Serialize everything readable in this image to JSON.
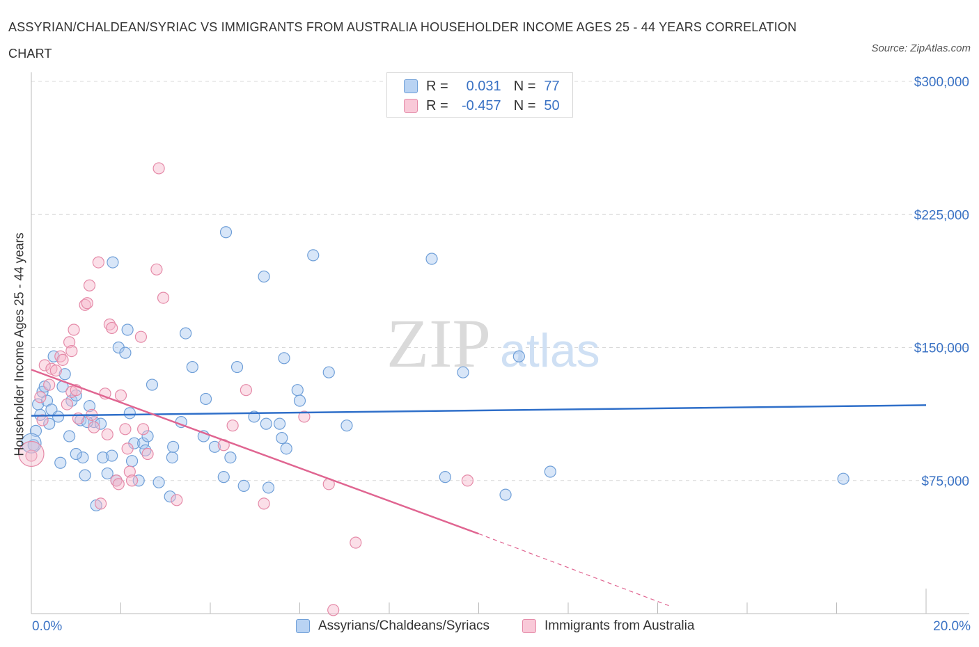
{
  "title": "ASSYRIAN/CHALDEAN/SYRIAC VS IMMIGRANTS FROM AUSTRALIA HOUSEHOLDER INCOME AGES 25 - 44 YEARS CORRELATION CHART",
  "source": "Source: ZipAtlas.com",
  "watermark": {
    "zip": "ZIP",
    "atlas": "atlas"
  },
  "legend": {
    "rows": [
      {
        "r_label": "R =",
        "r_value": "0.031",
        "n_label": "N =",
        "n_value": "77"
      },
      {
        "r_label": "R =",
        "r_value": "-0.457",
        "n_label": "N =",
        "n_value": "50"
      }
    ]
  },
  "bottom_legend": [
    {
      "label": "Assyrians/Chaldeans/Syriacs"
    },
    {
      "label": "Immigrants from Australia"
    }
  ],
  "colors": {
    "blue_fill": "#a9c8f0",
    "blue_stroke": "#6f9fd8",
    "blue_line": "#2f6fc9",
    "pink_fill": "#f6b8cb",
    "pink_stroke": "#e58aa8",
    "pink_line": "#e06591",
    "tick_text": "#3a72c4",
    "grid": "#d9d9d9"
  },
  "chart_data": {
    "type": "scatter",
    "title": "ASSYRIAN/CHALDEAN/SYRIAC VS IMMIGRANTS FROM AUSTRALIA HOUSEHOLDER INCOME AGES 25 - 44 YEARS CORRELATION CHART",
    "xlabel": "",
    "ylabel": "Householder Income Ages 25 - 44 years",
    "xlim": [
      0,
      20
    ],
    "ylim": [
      0,
      300000
    ],
    "x_tick_labels": [
      "0.0%",
      "20.0%"
    ],
    "y_ticks": [
      75000,
      150000,
      225000,
      300000
    ],
    "y_tick_labels": [
      "$75,000",
      "$150,000",
      "$225,000",
      "$300,000"
    ],
    "grid": true,
    "series": [
      {
        "name": "Assyrians/Chaldeans/Syriacs",
        "color": "#a9c8f0",
        "trend": {
          "x": [
            0,
            20
          ],
          "y": [
            111500,
            117500
          ]
        },
        "points": [
          [
            0.05,
            95000
          ],
          [
            0.1,
            103000
          ],
          [
            0.15,
            118000
          ],
          [
            0.2,
            112000
          ],
          [
            0.25,
            125000
          ],
          [
            0.3,
            128000
          ],
          [
            0.35,
            120000
          ],
          [
            0.4,
            107000
          ],
          [
            0.45,
            115000
          ],
          [
            0.5,
            145000
          ],
          [
            0.6,
            111000
          ],
          [
            0.65,
            85000
          ],
          [
            0.7,
            128000
          ],
          [
            0.75,
            135000
          ],
          [
            0.85,
            100000
          ],
          [
            0.9,
            120000
          ],
          [
            1.0,
            123000
          ],
          [
            1.1,
            109000
          ],
          [
            1.15,
            88000
          ],
          [
            1.2,
            78000
          ],
          [
            1.3,
            117000
          ],
          [
            1.4,
            108000
          ],
          [
            1.45,
            61000
          ],
          [
            1.55,
            107000
          ],
          [
            1.6,
            88000
          ],
          [
            1.7,
            79000
          ],
          [
            1.8,
            89000
          ],
          [
            1.82,
            198000
          ],
          [
            1.9,
            75000
          ],
          [
            1.95,
            150000
          ],
          [
            2.1,
            147000
          ],
          [
            2.15,
            160000
          ],
          [
            2.2,
            113000
          ],
          [
            2.25,
            86000
          ],
          [
            2.3,
            96000
          ],
          [
            2.4,
            75000
          ],
          [
            2.5,
            96000
          ],
          [
            2.55,
            92000
          ],
          [
            2.7,
            129000
          ],
          [
            2.85,
            74000
          ],
          [
            3.15,
            88000
          ],
          [
            3.17,
            94000
          ],
          [
            3.35,
            108000
          ],
          [
            3.45,
            158000
          ],
          [
            3.6,
            139000
          ],
          [
            3.85,
            100000
          ],
          [
            3.9,
            121000
          ],
          [
            4.1,
            94000
          ],
          [
            4.3,
            77000
          ],
          [
            4.35,
            215000
          ],
          [
            4.45,
            88000
          ],
          [
            4.6,
            139000
          ],
          [
            4.75,
            72000
          ],
          [
            4.98,
            111000
          ],
          [
            5.2,
            190000
          ],
          [
            5.25,
            107000
          ],
          [
            5.3,
            71000
          ],
          [
            5.55,
            107000
          ],
          [
            5.6,
            99000
          ],
          [
            5.65,
            144000
          ],
          [
            5.7,
            93000
          ],
          [
            5.95,
            126000
          ],
          [
            6.0,
            120000
          ],
          [
            6.3,
            202000
          ],
          [
            6.65,
            136000
          ],
          [
            7.05,
            106000
          ],
          [
            8.95,
            200000
          ],
          [
            9.25,
            77000
          ],
          [
            9.65,
            136000
          ],
          [
            10.6,
            67000
          ],
          [
            10.9,
            145000
          ],
          [
            11.6,
            80000
          ],
          [
            18.15,
            76000
          ],
          [
            1.0,
            90000
          ],
          [
            1.25,
            108000
          ],
          [
            2.6,
            100000
          ],
          [
            3.1,
            66000
          ]
        ]
      },
      {
        "name": "Immigrants from Australia",
        "color": "#f6b8cb",
        "trend": {
          "x": [
            0,
            10
          ],
          "y": [
            137500,
            45000
          ],
          "dashed_to": {
            "x": 14.3,
            "y": 4000
          }
        },
        "points": [
          [
            0.0,
            89000
          ],
          [
            0.2,
            122000
          ],
          [
            0.25,
            109000
          ],
          [
            0.3,
            140000
          ],
          [
            0.4,
            129000
          ],
          [
            0.45,
            138000
          ],
          [
            0.55,
            137000
          ],
          [
            0.65,
            145000
          ],
          [
            0.7,
            143000
          ],
          [
            0.8,
            118000
          ],
          [
            0.85,
            153000
          ],
          [
            0.9,
            125000
          ],
          [
            0.9,
            148000
          ],
          [
            0.95,
            160000
          ],
          [
            1.0,
            126000
          ],
          [
            1.05,
            110000
          ],
          [
            1.2,
            174000
          ],
          [
            1.25,
            175000
          ],
          [
            1.3,
            185000
          ],
          [
            1.35,
            112000
          ],
          [
            1.4,
            105000
          ],
          [
            1.5,
            198000
          ],
          [
            1.55,
            62000
          ],
          [
            1.65,
            124000
          ],
          [
            1.7,
            101000
          ],
          [
            1.75,
            163000
          ],
          [
            1.8,
            161000
          ],
          [
            1.9,
            75000
          ],
          [
            1.95,
            73000
          ],
          [
            2.0,
            123000
          ],
          [
            2.1,
            104000
          ],
          [
            2.15,
            93000
          ],
          [
            2.2,
            80000
          ],
          [
            2.25,
            75000
          ],
          [
            2.45,
            156000
          ],
          [
            2.5,
            104000
          ],
          [
            2.6,
            90000
          ],
          [
            2.8,
            194000
          ],
          [
            2.85,
            251000
          ],
          [
            2.95,
            178000
          ],
          [
            3.25,
            64000
          ],
          [
            4.3,
            95000
          ],
          [
            4.5,
            106000
          ],
          [
            4.8,
            126000
          ],
          [
            5.2,
            62000
          ],
          [
            6.1,
            111000
          ],
          [
            6.65,
            73000
          ],
          [
            6.75,
            2000
          ],
          [
            7.25,
            40000
          ],
          [
            9.75,
            75000
          ]
        ]
      }
    ]
  }
}
